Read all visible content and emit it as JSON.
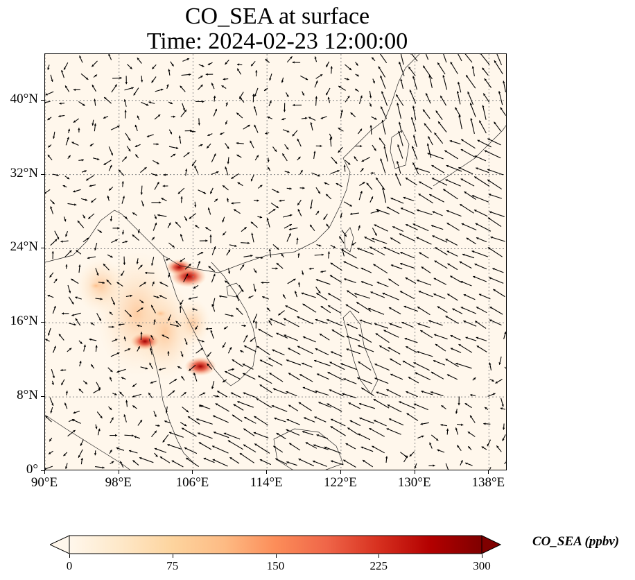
{
  "title": {
    "line1": "CO_SEA at surface",
    "line2": "Time: 2024-02-23 12:00:00"
  },
  "map": {
    "lon_range": [
      90,
      140
    ],
    "lat_range": [
      0,
      45
    ],
    "gridlines": true,
    "gridline_style": "dotted",
    "xticks": [
      {
        "value": 90,
        "label": "90°E"
      },
      {
        "value": 98,
        "label": "98°E"
      },
      {
        "value": 106,
        "label": "106°E"
      },
      {
        "value": 114,
        "label": "114°E"
      },
      {
        "value": 122,
        "label": "122°E"
      },
      {
        "value": 130,
        "label": "130°E"
      },
      {
        "value": 138,
        "label": "138°E"
      }
    ],
    "yticks": [
      {
        "value": 0,
        "label": "0°"
      },
      {
        "value": 8,
        "label": "8°N"
      },
      {
        "value": 16,
        "label": "16°N"
      },
      {
        "value": 24,
        "label": "24°N"
      },
      {
        "value": 32,
        "label": "32°N"
      },
      {
        "value": 40,
        "label": "40°N"
      }
    ],
    "field": "CO_SEA",
    "vectors": "wind arrows",
    "hotspots": [
      {
        "lon": 105.5,
        "lat": 21.0,
        "value": 270
      },
      {
        "lon": 104.5,
        "lat": 22.0,
        "value": 180
      },
      {
        "lon": 106.8,
        "lat": 11.3,
        "value": 230
      },
      {
        "lon": 100.8,
        "lat": 14.0,
        "value": 200
      },
      {
        "lon": 95.5,
        "lat": 20.0,
        "value": 60
      },
      {
        "lon": 102.5,
        "lat": 17.0,
        "value": 70
      }
    ]
  },
  "colorbar": {
    "label": "CO_SEA (ppbv)",
    "colormap": [
      "#fff7ec",
      "#fee8c8",
      "#fdd49e",
      "#fdbb84",
      "#fc8d59",
      "#ef6548",
      "#d7301f",
      "#b30000",
      "#7f0000"
    ],
    "ticks": [
      {
        "value": 0,
        "label": "0"
      },
      {
        "value": 75,
        "label": "75"
      },
      {
        "value": 150,
        "label": "150"
      },
      {
        "value": 225,
        "label": "225"
      },
      {
        "value": 300,
        "label": "300"
      }
    ],
    "range": [
      0,
      300
    ],
    "extend": "both"
  }
}
